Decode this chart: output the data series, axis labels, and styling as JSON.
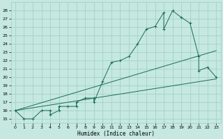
{
  "xlabel": "Humidex (Indice chaleur)",
  "x_ticks": [
    0,
    1,
    2,
    3,
    4,
    5,
    6,
    7,
    8,
    9,
    10,
    11,
    12,
    13,
    14,
    15,
    16,
    17,
    18,
    19,
    20,
    21,
    22,
    23
  ],
  "ylim": [
    14.5,
    29
  ],
  "xlim": [
    -0.5,
    23.5
  ],
  "y_ticks": [
    15,
    16,
    17,
    18,
    19,
    20,
    21,
    22,
    23,
    24,
    25,
    26,
    27,
    28
  ],
  "bg_color": "#c5e8e0",
  "grid_color": "#9fccc4",
  "line_color": "#1a6b5a",
  "main_x": [
    0,
    1,
    2,
    3,
    4,
    4,
    5,
    5,
    6,
    7,
    7,
    8,
    9,
    9,
    10,
    11,
    12,
    13,
    14,
    15,
    16,
    17,
    17,
    18,
    19,
    20,
    21,
    21,
    22,
    23
  ],
  "main_y": [
    16,
    15,
    15,
    16,
    16,
    15.5,
    16,
    16.5,
    16.5,
    16.5,
    17,
    17.5,
    17.5,
    17,
    19.5,
    21.8,
    22,
    22.5,
    24,
    25.8,
    26.1,
    27.8,
    25.8,
    28,
    27.2,
    26.5,
    22.5,
    20.8,
    21.2,
    20
  ],
  "line2_x": [
    0,
    23
  ],
  "line2_y": [
    16,
    19.8
  ],
  "line3_x": [
    0,
    23
  ],
  "line3_y": [
    16,
    23.2
  ]
}
